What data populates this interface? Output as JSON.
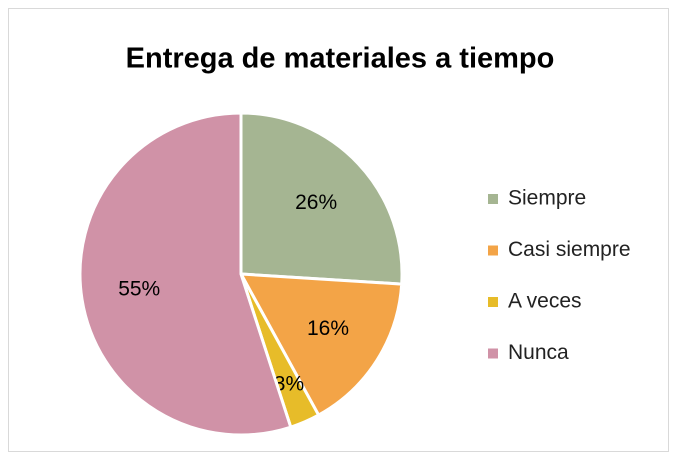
{
  "chart_data": {
    "type": "pie",
    "title": "Entrega de materiales a tiempo",
    "categories": [
      "Siempre",
      "Casi siempre",
      "A veces",
      "Nunca"
    ],
    "values": [
      26,
      16,
      3,
      55
    ],
    "value_labels": [
      "26%",
      "16%",
      "3%",
      "55%"
    ],
    "colors": [
      "#a5b592",
      "#f3a447",
      "#e7bc29",
      "#d092a7"
    ],
    "legend": "right"
  }
}
